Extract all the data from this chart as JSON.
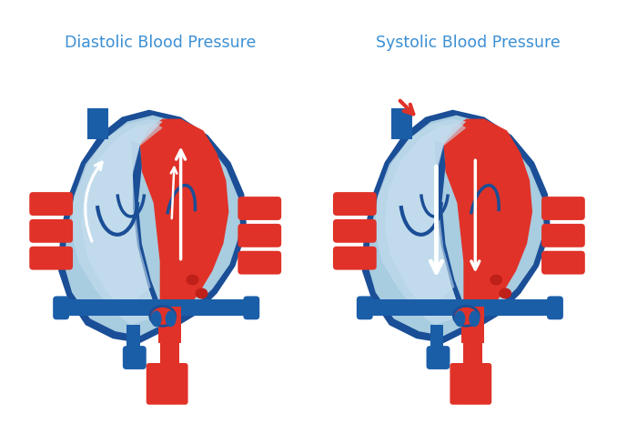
{
  "background_color": "#ffffff",
  "label_left": "Diastolic Blood Pressure",
  "label_right": "Systolic Blood Pressure",
  "label_color": "#3b8fd4",
  "label_fontsize": 12.5,
  "colors": {
    "dark_blue": "#1b5ea8",
    "medium_blue": "#2576c8",
    "light_blue": "#a8cce0",
    "lighter_blue": "#bdd8ea",
    "red": "#e03228",
    "dark_red": "#c0201a",
    "white": "#ffffff",
    "outline": "#1a4e96",
    "blue_vessel": "#2060b0"
  }
}
